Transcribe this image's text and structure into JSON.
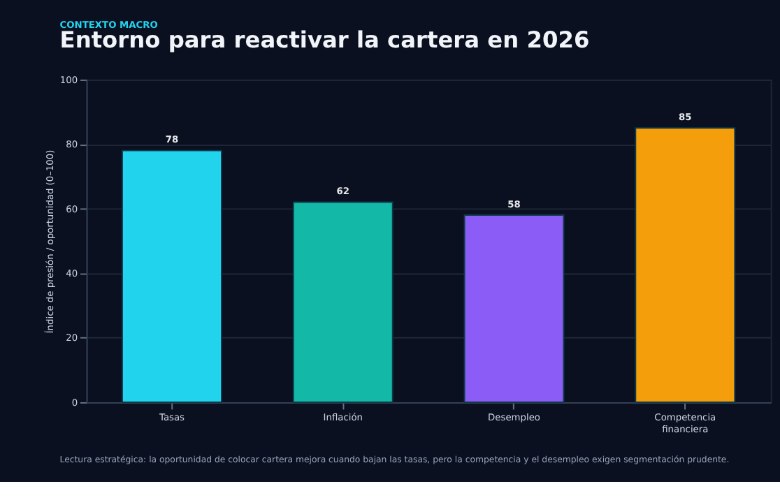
{
  "chart_data": {
    "type": "bar",
    "title": "Entorno para reactivar la cartera en 2026",
    "subtitle": "CONTEXTO MACRO",
    "ylabel": "Índice de presión / oportunidad (0–100)",
    "categories": [
      "Tasas",
      "Inflación",
      "Desempleo",
      "Competencia financiera"
    ],
    "values": [
      78,
      62,
      58,
      85
    ],
    "colors": [
      "#22d3ee",
      "#14b8a6",
      "#8b5cf6",
      "#f59e0b"
    ],
    "ylim": [
      0,
      100
    ],
    "yticks": [
      0,
      20,
      40,
      60,
      80,
      100
    ],
    "grid": "y",
    "data_labels": true,
    "annotations": [
      "Lectura estratégica: la oportunidad de colocar cartera mejora cuando bajan las tasas, pero la competencia y el desempleo exigen segmentación prudente."
    ]
  }
}
